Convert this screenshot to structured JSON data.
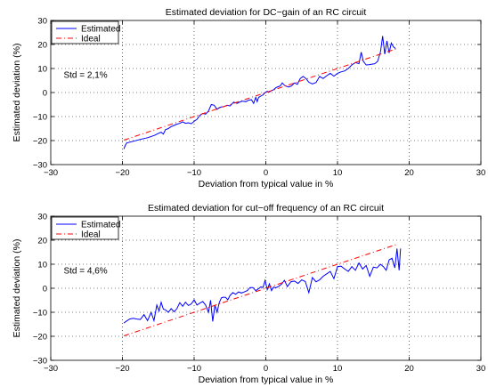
{
  "chart_data": [
    {
      "type": "line",
      "title": "Estimated deviation for DC−gain of an RC circuit",
      "xlabel": "Deviation from typical value in %",
      "ylabel": "Estimated deviation (%)",
      "xlim": [
        -30,
        30
      ],
      "ylim": [
        -30,
        30
      ],
      "xticks": [
        -30,
        -20,
        -10,
        0,
        10,
        20,
        30
      ],
      "yticks": [
        -30,
        -20,
        -10,
        0,
        10,
        20,
        30
      ],
      "xtick_labels": [
        "−30",
        "−20",
        "−10",
        "0",
        "10",
        "20",
        "30"
      ],
      "ytick_labels": [
        "−30",
        "−20",
        "−10",
        "0",
        "10",
        "20",
        "30"
      ],
      "grid": true,
      "legend": "top-left",
      "annotation": "Std = 2,1%",
      "series": [
        {
          "name": "Estimated",
          "color": "#0000ff",
          "style": "solid",
          "x": [
            -19.8,
            -19.6,
            -19.4,
            -18.5,
            -17.5,
            -16.5,
            -15.5,
            -15.0,
            -14.6,
            -14.3,
            -14.0,
            -13.6,
            -13.2,
            -12.8,
            -12.5,
            -12.0,
            -11.6,
            -11.2,
            -10.8,
            -10.4,
            -10.0,
            -9.6,
            -9.2,
            -8.8,
            -8.4,
            -8.0,
            -7.6,
            -7.2,
            -6.8,
            -6.5,
            -6.2,
            -5.8,
            -5.4,
            -5.0,
            -4.5,
            -4.0,
            -3.6,
            -3.2,
            -2.8,
            -2.4,
            -2.0,
            -1.7,
            -1.4,
            -1.2,
            -1.0,
            -0.7,
            -0.4,
            -0.1,
            0.2,
            0.5,
            0.8,
            1.1,
            1.4,
            1.7,
            2.0,
            2.3,
            2.6,
            2.9,
            3.2,
            3.6,
            4.0,
            4.4,
            4.8,
            5.2,
            5.6,
            6.0,
            6.5,
            7.0,
            7.5,
            8.0,
            8.5,
            9.0,
            9.5,
            10.0,
            10.5,
            11.0,
            11.5,
            12.0,
            12.5,
            13.0,
            13.3,
            13.6,
            14.0,
            14.4,
            14.8,
            15.2,
            15.6,
            16.0,
            16.3,
            16.6,
            16.9,
            17.2,
            17.5,
            17.8,
            18.1
          ],
          "y": [
            -23.5,
            -22.0,
            -21.0,
            -20.3,
            -19.5,
            -18.8,
            -17.8,
            -17.0,
            -16.5,
            -17.3,
            -15.5,
            -15.0,
            -14.2,
            -13.7,
            -13.3,
            -12.8,
            -12.2,
            -12.8,
            -12.6,
            -13.0,
            -12.0,
            -11.2,
            -9.5,
            -8.7,
            -9.0,
            -7.7,
            -5.0,
            -5.3,
            -7.0,
            -6.3,
            -6.0,
            -5.8,
            -5.3,
            -5.6,
            -4.0,
            -4.5,
            -3.9,
            -3.6,
            -3.8,
            -3.2,
            -3.0,
            -4.5,
            -2.0,
            -3.8,
            -2.0,
            -1.5,
            -1.0,
            0.0,
            0.5,
            0.2,
            0.8,
            1.2,
            2.0,
            2.4,
            2.7,
            4.0,
            3.0,
            2.6,
            2.3,
            2.8,
            4.0,
            3.4,
            5.8,
            6.7,
            5.8,
            4.3,
            3.6,
            4.2,
            6.7,
            5.8,
            7.0,
            8.0,
            6.8,
            8.0,
            8.6,
            9.0,
            10.0,
            11.5,
            12.5,
            12.0,
            16.8,
            13.0,
            11.5,
            11.6,
            11.8,
            12.0,
            13.0,
            17.0,
            23.5,
            16.0,
            21.5,
            16.5,
            20.6,
            19.0,
            18.3
          ]
        },
        {
          "name": "Ideal",
          "color": "#ff0000",
          "style": "dashdot",
          "x": [
            -19.8,
            18.3
          ],
          "y": [
            -19.8,
            18.3
          ]
        }
      ]
    },
    {
      "type": "line",
      "title": "Estimated deviation for cut−off frequency of an RC circuit",
      "xlabel": "Deviation from typical value in %",
      "ylabel": "Estimated deviation (%)",
      "xlim": [
        -30,
        30
      ],
      "ylim": [
        -30,
        30
      ],
      "xticks": [
        -30,
        -20,
        -10,
        0,
        10,
        20,
        30
      ],
      "yticks": [
        -30,
        -20,
        -10,
        0,
        10,
        20,
        30
      ],
      "xtick_labels": [
        "−30",
        "−20",
        "−10",
        "0",
        "10",
        "20",
        "30"
      ],
      "ytick_labels": [
        "−30",
        "−20",
        "−10",
        "0",
        "10",
        "20",
        "30"
      ],
      "grid": true,
      "legend": "top-left",
      "annotation": "Std = 4,6%",
      "series": [
        {
          "name": "Estimated",
          "color": "#0000ff",
          "style": "solid",
          "x": [
            -19.8,
            -19.5,
            -19.0,
            -18.5,
            -18.0,
            -17.5,
            -17.0,
            -16.5,
            -16.0,
            -15.6,
            -15.2,
            -14.9,
            -14.6,
            -14.3,
            -14.0,
            -13.6,
            -13.2,
            -12.8,
            -12.4,
            -12.0,
            -11.6,
            -11.2,
            -10.8,
            -10.4,
            -10.0,
            -9.6,
            -9.2,
            -8.8,
            -8.4,
            -8.0,
            -7.7,
            -7.4,
            -7.1,
            -6.8,
            -6.5,
            -6.2,
            -5.9,
            -5.6,
            -5.3,
            -5.0,
            -4.6,
            -4.2,
            -3.8,
            -3.4,
            -3.0,
            -2.6,
            -2.2,
            -1.8,
            -1.4,
            -1.0,
            -0.7,
            -0.4,
            -0.1,
            0.2,
            0.5,
            0.8,
            1.1,
            1.4,
            1.8,
            2.2,
            2.6,
            3.0,
            3.5,
            4.0,
            4.5,
            5.0,
            5.5,
            6.0,
            6.5,
            7.0,
            7.5,
            8.0,
            8.5,
            9.0,
            9.5,
            10.0,
            10.5,
            11.0,
            11.5,
            12.0,
            12.5,
            13.0,
            13.5,
            14.0,
            14.5,
            15.0,
            15.5,
            16.0,
            16.4,
            16.8,
            17.2,
            17.6,
            18.0,
            18.3,
            18.6,
            18.8
          ],
          "y": [
            -14.5,
            -13.8,
            -12.8,
            -12.5,
            -12.8,
            -13.0,
            -11.0,
            -13.5,
            -10.0,
            -13.5,
            -7.0,
            -9.5,
            -5.8,
            -8.7,
            -9.0,
            -10.0,
            -8.5,
            -9.8,
            -8.5,
            -6.0,
            -7.5,
            -5.8,
            -7.2,
            -6.5,
            -4.8,
            -7.0,
            -6.2,
            -5.5,
            -7.0,
            -10.0,
            -5.0,
            -13.8,
            -7.0,
            -10.0,
            -6.0,
            -4.0,
            -3.7,
            -3.8,
            -4.8,
            -3.0,
            -1.8,
            -2.5,
            -1.5,
            -2.0,
            -1.5,
            -1.0,
            0.3,
            0.3,
            -1.0,
            -0.2,
            0.6,
            0.3,
            3.3,
            -0.6,
            1.8,
            -1.0,
            0.5,
            0.2,
            0.8,
            1.7,
            3.3,
            0.7,
            2.7,
            3.0,
            2.0,
            3.5,
            2.8,
            -1.8,
            4.5,
            2.7,
            3.5,
            5.0,
            6.0,
            7.0,
            4.0,
            9.0,
            9.2,
            8.0,
            7.0,
            9.0,
            7.5,
            10.5,
            8.0,
            9.5,
            5.0,
            8.8,
            8.5,
            10.0,
            9.0,
            7.5,
            11.8,
            12.5,
            8.5,
            16.5,
            7.5,
            16.5
          ],
          "_note": ""
        },
        {
          "name": "Ideal",
          "color": "#ff0000",
          "style": "dashdot",
          "x": [
            -19.8,
            18.3
          ],
          "y": [
            -19.8,
            18.3
          ]
        }
      ]
    }
  ]
}
